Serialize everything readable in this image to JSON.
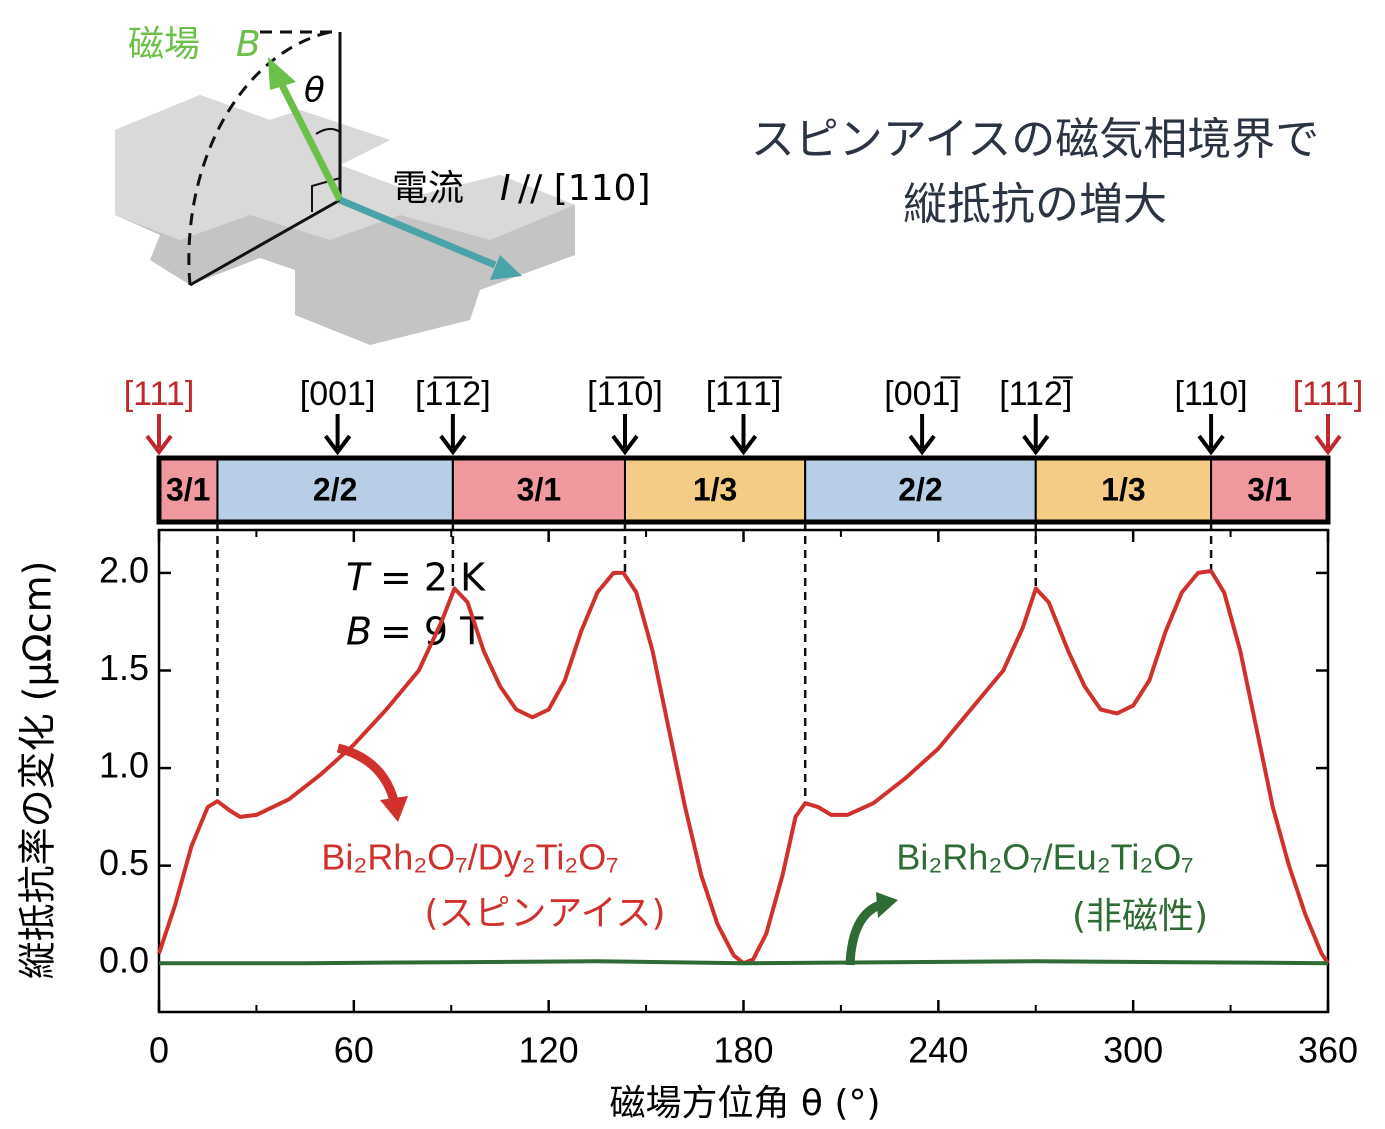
{
  "chart_data": {
    "type": "line",
    "title": [
      "スピンアイスの磁気相境界で",
      "縦抵抗の増大"
    ],
    "inset": {
      "field_label": "磁場",
      "field_symbol": "B",
      "angle_symbol": "θ",
      "current_label": "電流",
      "current_symbol": "I",
      "current_direction": "// [110]"
    },
    "xlabel": "磁場方位角 θ (°)",
    "ylabel": "縦抵抗率の変化 (μΩcm)",
    "xlim": [
      0,
      360
    ],
    "xticks": [
      0,
      60,
      120,
      180,
      240,
      300,
      360
    ],
    "xminorticks": [
      30,
      90,
      150,
      210,
      270,
      330
    ],
    "ylim": [
      -0.25,
      2.22
    ],
    "yticks": [
      {
        "value": 0,
        "label": "0.0"
      },
      {
        "value": 0.5,
        "label": "0.5"
      },
      {
        "value": 1,
        "label": "1.0"
      },
      {
        "value": 1.5,
        "label": "1.5"
      },
      {
        "value": 2,
        "label": "2.0"
      }
    ],
    "annotations": [
      {
        "symbol": "T",
        "text": "= 2 K"
      },
      {
        "symbol": "B",
        "text": "= 9 T"
      }
    ],
    "phases": [
      {
        "label": "3/1",
        "start": 0,
        "end": 18,
        "color": "#f09a9f"
      },
      {
        "label": "2/2",
        "start": 18,
        "end": 90.5,
        "color": "#b8cde6"
      },
      {
        "label": "3/1",
        "start": 90.5,
        "end": 143.5,
        "color": "#f09a9f"
      },
      {
        "label": "1/3",
        "start": 143.5,
        "end": 199,
        "color": "#f4cc85"
      },
      {
        "label": "2/2",
        "start": 199,
        "end": 270,
        "color": "#b8cde6"
      },
      {
        "label": "1/3",
        "start": 270,
        "end": 324,
        "color": "#f4cc85"
      },
      {
        "label": "3/1",
        "start": 324,
        "end": 360,
        "color": "#f09a9f"
      }
    ],
    "directions": [
      {
        "label": "[111]",
        "x": 0,
        "color": "#c0282f"
      },
      {
        "label": "[001]",
        "x": 55,
        "color": "#000000"
      },
      {
        "label": "[1̅1̅2]",
        "x": 90.5,
        "color": "#000000"
      },
      {
        "label": "[1̅1̅0]",
        "x": 143.5,
        "color": "#000000"
      },
      {
        "label": "[1̅1̅1̅]",
        "x": 180,
        "color": "#000000"
      },
      {
        "label": "[001̅]",
        "x": 235,
        "color": "#000000"
      },
      {
        "label": "[112̅]",
        "x": 270,
        "color": "#000000"
      },
      {
        "label": "[110]",
        "x": 324,
        "color": "#000000"
      },
      {
        "label": "[111]",
        "x": 360,
        "color": "#c0282f"
      }
    ],
    "series": [
      {
        "name": "Bi₂Rh₂O₇/Dy₂Ti₂O₇",
        "sublabel": "(スピンアイス)",
        "color": "#d0312d",
        "x": [
          0,
          5,
          10,
          15,
          18,
          22,
          25,
          30,
          40,
          50,
          60,
          70,
          80,
          87,
          91,
          95,
          100,
          105,
          110,
          115,
          120,
          125,
          130,
          135,
          140,
          143,
          147,
          152,
          157,
          162,
          167,
          172,
          177,
          180,
          183,
          187,
          192,
          196,
          199,
          203,
          207,
          212,
          220,
          230,
          240,
          250,
          260,
          266,
          270,
          274,
          280,
          285,
          290,
          295,
          300,
          305,
          310,
          315,
          320,
          324,
          328,
          333,
          338,
          343,
          348,
          353,
          358,
          360
        ],
        "values": [
          0.05,
          0.3,
          0.6,
          0.8,
          0.83,
          0.78,
          0.75,
          0.76,
          0.84,
          0.97,
          1.12,
          1.3,
          1.5,
          1.75,
          1.92,
          1.85,
          1.6,
          1.42,
          1.3,
          1.26,
          1.3,
          1.45,
          1.7,
          1.9,
          2.0,
          2.0,
          1.9,
          1.6,
          1.2,
          0.8,
          0.45,
          0.2,
          0.04,
          0.0,
          0.02,
          0.15,
          0.45,
          0.75,
          0.82,
          0.8,
          0.76,
          0.76,
          0.82,
          0.95,
          1.1,
          1.3,
          1.5,
          1.72,
          1.92,
          1.85,
          1.6,
          1.42,
          1.3,
          1.28,
          1.32,
          1.45,
          1.7,
          1.9,
          2.0,
          2.01,
          1.9,
          1.6,
          1.2,
          0.8,
          0.5,
          0.25,
          0.05,
          0.0
        ]
      },
      {
        "name": "Bi₂Rh₂O₇/Eu₂Ti₂O₇",
        "sublabel": "(非磁性)",
        "color": "#2e6b35",
        "x": [
          0,
          45,
          90,
          135,
          180,
          225,
          270,
          315,
          360
        ],
        "values": [
          0,
          0,
          0.005,
          0.01,
          0,
          0.005,
          0.01,
          0.005,
          0
        ]
      }
    ]
  }
}
